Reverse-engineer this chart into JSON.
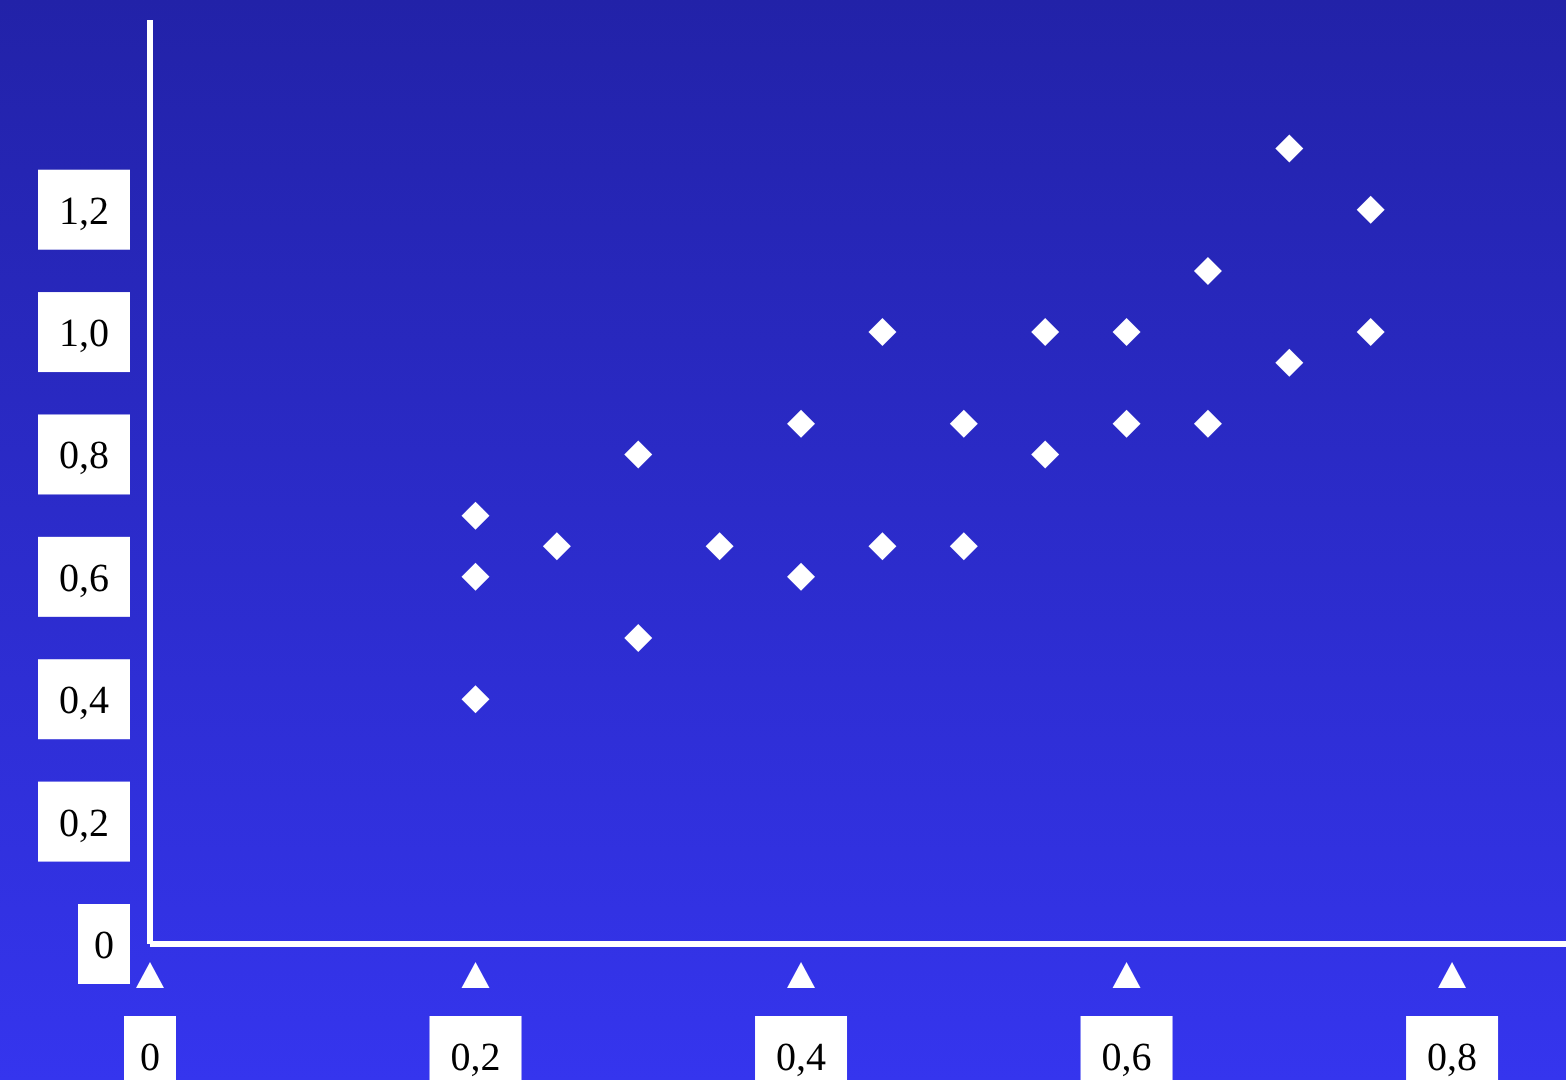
{
  "chart_data": {
    "type": "scatter",
    "x": [
      0.2,
      0.2,
      0.2,
      0.25,
      0.3,
      0.3,
      0.35,
      0.4,
      0.4,
      0.45,
      0.45,
      0.5,
      0.5,
      0.55,
      0.55,
      0.6,
      0.6,
      0.65,
      0.65,
      0.7,
      0.7,
      0.75,
      0.75
    ],
    "values": [
      0.7,
      0.6,
      0.4,
      0.65,
      0.8,
      0.5,
      0.65,
      0.85,
      0.6,
      1.0,
      0.65,
      0.85,
      0.65,
      1.0,
      0.8,
      1.0,
      0.85,
      1.1,
      0.85,
      1.3,
      0.95,
      1.2,
      1.0
    ],
    "color": "#ffffff",
    "marker": "diamond",
    "xlim": [
      0,
      0.87
    ],
    "xticks": [
      {
        "value": 0,
        "label": "0"
      },
      {
        "value": 0.2,
        "label": "0,2"
      },
      {
        "value": 0.4,
        "label": "0,4"
      },
      {
        "value": 0.6,
        "label": "0,6"
      },
      {
        "value": 0.8,
        "label": "0,8"
      }
    ],
    "ylim": [
      0,
      1.51
    ],
    "yticks": [
      {
        "value": 0,
        "label": "0"
      },
      {
        "value": 0.2,
        "label": "0,2"
      },
      {
        "value": 0.4,
        "label": "0,4"
      },
      {
        "value": 0.6,
        "label": "0,6"
      },
      {
        "value": 0.8,
        "label": "0,8"
      },
      {
        "value": 1.0,
        "label": "1,0"
      },
      {
        "value": 1.2,
        "label": "1,2"
      }
    ],
    "grid": false,
    "legend": false
  }
}
